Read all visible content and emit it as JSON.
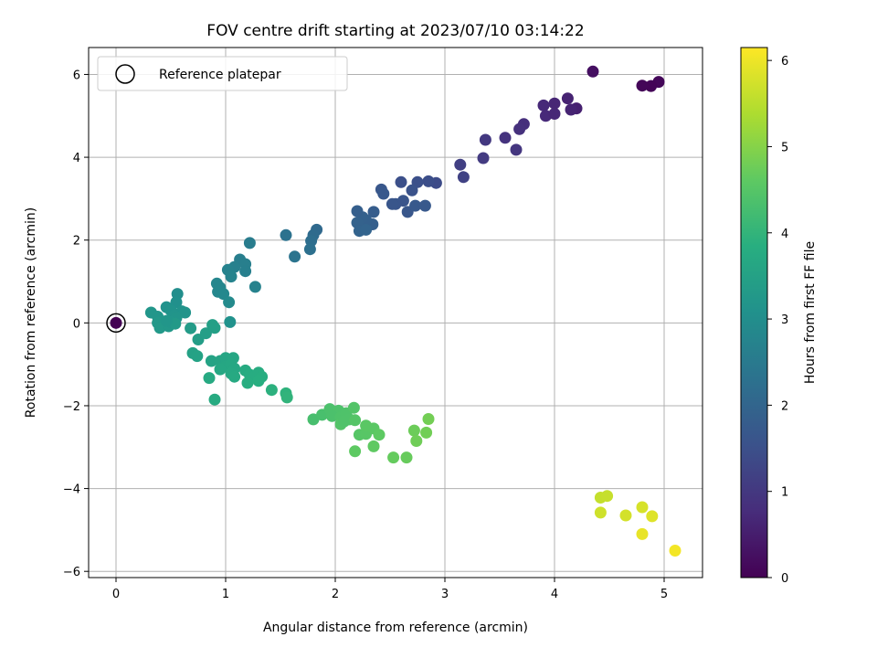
{
  "chart_data": {
    "type": "scatter",
    "title": "FOV centre drift starting at 2023/07/10 03:14:22",
    "xlabel": "Angular distance from reference (arcmin)",
    "ylabel": "Rotation from reference (arcmin)",
    "colorbar_label": "Hours from first FF file",
    "xlim": [
      -0.25,
      5.35
    ],
    "ylim": [
      -6.15,
      6.65
    ],
    "xticks": [
      0,
      1,
      2,
      3,
      4,
      5
    ],
    "yticks": [
      -6,
      -4,
      -2,
      0,
      2,
      4,
      6
    ],
    "colorbar_ticks": [
      0,
      1,
      2,
      3,
      4,
      5,
      6
    ],
    "colorbar_range": [
      0,
      6.15
    ],
    "colormap": "viridis",
    "grid": true,
    "legend": {
      "placement": "top-left",
      "entries": [
        "Reference platepar"
      ]
    },
    "reference_point": {
      "x": 0,
      "y": 0,
      "hours": 0
    },
    "points": [
      {
        "x": 4.35,
        "y": 6.07,
        "h": 0.25
      },
      {
        "x": 4.95,
        "y": 5.82,
        "h": 0.1
      },
      {
        "x": 4.88,
        "y": 5.72,
        "h": 0.05
      },
      {
        "x": 4.8,
        "y": 5.73,
        "h": 0.08
      },
      {
        "x": 4.2,
        "y": 5.18,
        "h": 0.55
      },
      {
        "x": 4.12,
        "y": 5.42,
        "h": 0.6
      },
      {
        "x": 4.15,
        "y": 5.15,
        "h": 0.62
      },
      {
        "x": 4.0,
        "y": 5.3,
        "h": 0.66
      },
      {
        "x": 3.9,
        "y": 5.25,
        "h": 0.7
      },
      {
        "x": 3.92,
        "y": 5.0,
        "h": 0.72
      },
      {
        "x": 4.0,
        "y": 5.05,
        "h": 0.68
      },
      {
        "x": 3.72,
        "y": 4.8,
        "h": 0.82
      },
      {
        "x": 3.68,
        "y": 4.68,
        "h": 0.85
      },
      {
        "x": 3.55,
        "y": 4.47,
        "h": 0.9
      },
      {
        "x": 3.65,
        "y": 4.18,
        "h": 0.95
      },
      {
        "x": 3.37,
        "y": 4.42,
        "h": 1.0
      },
      {
        "x": 3.35,
        "y": 3.98,
        "h": 1.05
      },
      {
        "x": 3.14,
        "y": 3.82,
        "h": 1.15
      },
      {
        "x": 3.17,
        "y": 3.52,
        "h": 1.2
      },
      {
        "x": 2.92,
        "y": 3.38,
        "h": 1.4
      },
      {
        "x": 2.85,
        "y": 3.42,
        "h": 1.45
      },
      {
        "x": 2.75,
        "y": 3.4,
        "h": 1.5
      },
      {
        "x": 2.7,
        "y": 3.2,
        "h": 1.55
      },
      {
        "x": 2.6,
        "y": 3.4,
        "h": 1.5
      },
      {
        "x": 2.62,
        "y": 2.95,
        "h": 1.6
      },
      {
        "x": 2.55,
        "y": 2.87,
        "h": 1.62
      },
      {
        "x": 2.52,
        "y": 2.87,
        "h": 1.63
      },
      {
        "x": 2.66,
        "y": 2.68,
        "h": 1.65
      },
      {
        "x": 2.73,
        "y": 2.83,
        "h": 1.7
      },
      {
        "x": 2.82,
        "y": 2.83,
        "h": 1.7
      },
      {
        "x": 2.42,
        "y": 3.22,
        "h": 1.65
      },
      {
        "x": 2.44,
        "y": 3.12,
        "h": 1.68
      },
      {
        "x": 2.35,
        "y": 2.68,
        "h": 1.8
      },
      {
        "x": 2.34,
        "y": 2.38,
        "h": 1.85
      },
      {
        "x": 2.28,
        "y": 2.48,
        "h": 1.88
      },
      {
        "x": 2.25,
        "y": 2.55,
        "h": 1.9
      },
      {
        "x": 2.2,
        "y": 2.7,
        "h": 1.85
      },
      {
        "x": 2.2,
        "y": 2.42,
        "h": 1.92
      },
      {
        "x": 2.22,
        "y": 2.22,
        "h": 1.95
      },
      {
        "x": 2.28,
        "y": 2.25,
        "h": 1.97
      },
      {
        "x": 1.83,
        "y": 2.25,
        "h": 2.1
      },
      {
        "x": 1.8,
        "y": 2.12,
        "h": 2.15
      },
      {
        "x": 1.78,
        "y": 1.98,
        "h": 2.2
      },
      {
        "x": 1.77,
        "y": 1.78,
        "h": 2.25
      },
      {
        "x": 1.55,
        "y": 2.12,
        "h": 2.3
      },
      {
        "x": 1.63,
        "y": 1.6,
        "h": 2.35
      },
      {
        "x": 1.22,
        "y": 1.93,
        "h": 2.55
      },
      {
        "x": 1.27,
        "y": 0.87,
        "h": 2.7
      },
      {
        "x": 1.13,
        "y": 1.53,
        "h": 2.6
      },
      {
        "x": 1.18,
        "y": 1.42,
        "h": 2.62
      },
      {
        "x": 1.08,
        "y": 1.35,
        "h": 2.65
      },
      {
        "x": 1.18,
        "y": 1.25,
        "h": 2.63
      },
      {
        "x": 1.02,
        "y": 1.28,
        "h": 2.7
      },
      {
        "x": 1.05,
        "y": 1.12,
        "h": 2.72
      },
      {
        "x": 0.92,
        "y": 0.95,
        "h": 2.8
      },
      {
        "x": 0.95,
        "y": 0.85,
        "h": 2.8
      },
      {
        "x": 0.93,
        "y": 0.75,
        "h": 2.82
      },
      {
        "x": 0.98,
        "y": 0.7,
        "h": 2.85
      },
      {
        "x": 1.03,
        "y": 0.5,
        "h": 2.9
      },
      {
        "x": 1.04,
        "y": 0.02,
        "h": 3.1
      },
      {
        "x": 0.56,
        "y": 0.7,
        "h": 3.0
      },
      {
        "x": 0.55,
        "y": 0.5,
        "h": 3.05
      },
      {
        "x": 0.46,
        "y": 0.38,
        "h": 3.1
      },
      {
        "x": 0.5,
        "y": 0.3,
        "h": 3.12
      },
      {
        "x": 0.6,
        "y": 0.28,
        "h": 3.12
      },
      {
        "x": 0.63,
        "y": 0.25,
        "h": 3.15
      },
      {
        "x": 0.53,
        "y": 0.18,
        "h": 3.15
      },
      {
        "x": 0.55,
        "y": 0.12,
        "h": 3.18
      },
      {
        "x": 0.32,
        "y": 0.25,
        "h": 3.2
      },
      {
        "x": 0.38,
        "y": 0.15,
        "h": 3.2
      },
      {
        "x": 0.38,
        "y": 0.0,
        "h": 3.25
      },
      {
        "x": 0.4,
        "y": -0.12,
        "h": 3.28
      },
      {
        "x": 0.48,
        "y": -0.08,
        "h": 3.25
      },
      {
        "x": 0.5,
        "y": 0.02,
        "h": 3.22
      },
      {
        "x": 0.54,
        "y": -0.02,
        "h": 3.3
      },
      {
        "x": 0.46,
        "y": 0.05,
        "h": 3.2
      },
      {
        "x": 0.68,
        "y": -0.13,
        "h": 3.35
      },
      {
        "x": 0.75,
        "y": -0.4,
        "h": 3.4
      },
      {
        "x": 0.82,
        "y": -0.25,
        "h": 3.42
      },
      {
        "x": 0.88,
        "y": -0.05,
        "h": 3.45
      },
      {
        "x": 0.9,
        "y": -0.12,
        "h": 3.45
      },
      {
        "x": 0.7,
        "y": -0.73,
        "h": 3.5
      },
      {
        "x": 0.74,
        "y": -0.8,
        "h": 3.52
      },
      {
        "x": 0.87,
        "y": -0.92,
        "h": 3.55
      },
      {
        "x": 0.95,
        "y": -0.92,
        "h": 3.58
      },
      {
        "x": 1.0,
        "y": -0.85,
        "h": 3.6
      },
      {
        "x": 1.07,
        "y": -0.85,
        "h": 3.62
      },
      {
        "x": 1.0,
        "y": -1.05,
        "h": 3.62
      },
      {
        "x": 0.95,
        "y": -1.12,
        "h": 3.65
      },
      {
        "x": 1.05,
        "y": -1.0,
        "h": 3.65
      },
      {
        "x": 1.08,
        "y": -1.1,
        "h": 3.66
      },
      {
        "x": 1.05,
        "y": -1.22,
        "h": 3.68
      },
      {
        "x": 1.08,
        "y": -1.3,
        "h": 3.7
      },
      {
        "x": 0.85,
        "y": -1.33,
        "h": 3.72
      },
      {
        "x": 0.9,
        "y": -1.85,
        "h": 3.75
      },
      {
        "x": 1.18,
        "y": -1.15,
        "h": 3.75
      },
      {
        "x": 1.22,
        "y": -1.25,
        "h": 3.78
      },
      {
        "x": 1.26,
        "y": -1.32,
        "h": 3.8
      },
      {
        "x": 1.2,
        "y": -1.45,
        "h": 3.82
      },
      {
        "x": 1.3,
        "y": -1.2,
        "h": 3.8
      },
      {
        "x": 1.33,
        "y": -1.3,
        "h": 3.82
      },
      {
        "x": 1.3,
        "y": -1.4,
        "h": 3.85
      },
      {
        "x": 1.42,
        "y": -1.62,
        "h": 3.9
      },
      {
        "x": 1.55,
        "y": -1.7,
        "h": 3.95
      },
      {
        "x": 1.56,
        "y": -1.8,
        "h": 3.98
      },
      {
        "x": 1.8,
        "y": -2.33,
        "h": 4.3
      },
      {
        "x": 1.88,
        "y": -2.22,
        "h": 4.32
      },
      {
        "x": 1.95,
        "y": -2.08,
        "h": 4.35
      },
      {
        "x": 2.03,
        "y": -2.12,
        "h": 4.38
      },
      {
        "x": 1.97,
        "y": -2.25,
        "h": 4.35
      },
      {
        "x": 2.05,
        "y": -2.28,
        "h": 4.4
      },
      {
        "x": 2.1,
        "y": -2.18,
        "h": 4.4
      },
      {
        "x": 2.05,
        "y": -2.45,
        "h": 4.45
      },
      {
        "x": 2.08,
        "y": -2.38,
        "h": 4.42
      },
      {
        "x": 2.13,
        "y": -2.33,
        "h": 4.42
      },
      {
        "x": 2.17,
        "y": -2.05,
        "h": 4.45
      },
      {
        "x": 2.18,
        "y": -2.35,
        "h": 4.48
      },
      {
        "x": 2.22,
        "y": -2.7,
        "h": 4.5
      },
      {
        "x": 2.28,
        "y": -2.68,
        "h": 4.52
      },
      {
        "x": 2.28,
        "y": -2.48,
        "h": 4.55
      },
      {
        "x": 2.35,
        "y": -2.55,
        "h": 4.55
      },
      {
        "x": 2.4,
        "y": -2.7,
        "h": 4.6
      },
      {
        "x": 2.18,
        "y": -3.1,
        "h": 4.6
      },
      {
        "x": 2.35,
        "y": -2.98,
        "h": 4.62
      },
      {
        "x": 2.53,
        "y": -3.25,
        "h": 4.68
      },
      {
        "x": 2.65,
        "y": -3.25,
        "h": 4.7
      },
      {
        "x": 2.72,
        "y": -2.6,
        "h": 4.75
      },
      {
        "x": 2.74,
        "y": -2.85,
        "h": 4.78
      },
      {
        "x": 2.83,
        "y": -2.65,
        "h": 4.8
      },
      {
        "x": 2.85,
        "y": -2.32,
        "h": 4.82
      },
      {
        "x": 4.42,
        "y": -4.22,
        "h": 5.6
      },
      {
        "x": 4.48,
        "y": -4.18,
        "h": 5.62
      },
      {
        "x": 4.42,
        "y": -4.58,
        "h": 5.7
      },
      {
        "x": 4.65,
        "y": -4.65,
        "h": 5.75
      },
      {
        "x": 4.8,
        "y": -4.45,
        "h": 5.78
      },
      {
        "x": 4.89,
        "y": -4.67,
        "h": 5.85
      },
      {
        "x": 4.8,
        "y": -5.1,
        "h": 5.95
      },
      {
        "x": 5.1,
        "y": -5.5,
        "h": 6.05
      }
    ]
  }
}
